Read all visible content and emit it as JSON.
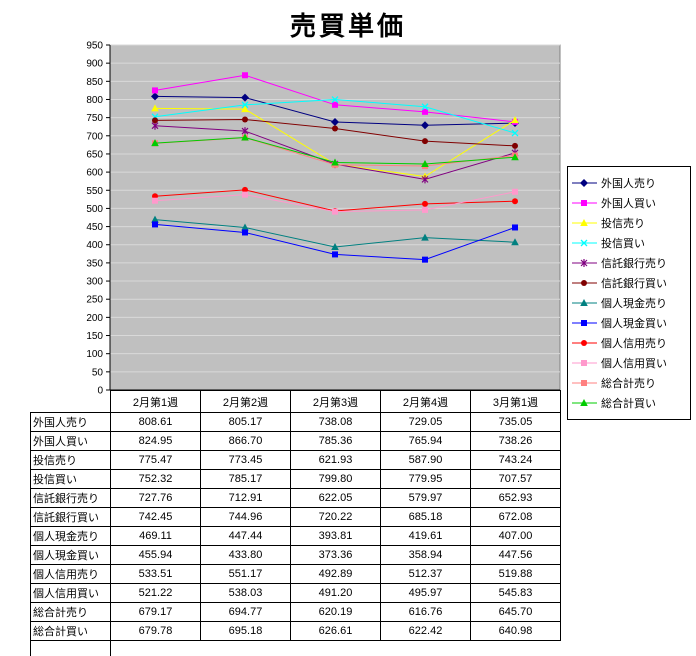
{
  "title": "売買単価",
  "chart_data": {
    "type": "line",
    "title": "売買単価",
    "categories": [
      "2月第1週",
      "2月第2週",
      "2月第3週",
      "2月第4週",
      "3月第1週"
    ],
    "ylim": [
      0,
      950
    ],
    "ytick_step": 50,
    "grid": true,
    "legend_position": "right",
    "plot_bg": "#C0C0C0",
    "grid_color": "#D9D9D9",
    "series": [
      {
        "name": "外国人売り",
        "color": "#000080",
        "marker": "diamond",
        "values": [
          808.61,
          805.17,
          738.08,
          729.05,
          735.05
        ]
      },
      {
        "name": "外国人買い",
        "color": "#FF00FF",
        "marker": "square",
        "values": [
          824.95,
          866.7,
          785.36,
          765.94,
          738.26
        ]
      },
      {
        "name": "投信売り",
        "color": "#FFFF00",
        "marker": "triangle",
        "values": [
          775.47,
          773.45,
          621.93,
          587.9,
          743.24
        ]
      },
      {
        "name": "投信買い",
        "color": "#00FFFF",
        "marker": "x",
        "values": [
          752.32,
          785.17,
          799.8,
          779.95,
          707.57
        ]
      },
      {
        "name": "信託銀行売り",
        "color": "#800080",
        "marker": "star",
        "values": [
          727.76,
          712.91,
          622.05,
          579.97,
          652.93
        ]
      },
      {
        "name": "信託銀行買い",
        "color": "#800000",
        "marker": "circle",
        "values": [
          742.45,
          744.96,
          720.22,
          685.18,
          672.08
        ]
      },
      {
        "name": "個人現金売り",
        "color": "#008080",
        "marker": "triangle",
        "values": [
          469.11,
          447.44,
          393.81,
          419.61,
          407.0
        ]
      },
      {
        "name": "個人現金買い",
        "color": "#0000FF",
        "marker": "square",
        "values": [
          455.94,
          433.8,
          373.36,
          358.94,
          447.56
        ]
      },
      {
        "name": "個人信用売り",
        "color": "#FF0000",
        "marker": "circle",
        "values": [
          533.51,
          551.17,
          492.89,
          512.37,
          519.88
        ]
      },
      {
        "name": "個人信用買い",
        "color": "#FF99CC",
        "marker": "square",
        "values": [
          521.22,
          538.03,
          491.2,
          495.97,
          545.83
        ]
      },
      {
        "name": "総合計売り",
        "color": "#FF8080",
        "marker": "square",
        "values": [
          679.17,
          694.77,
          620.19,
          616.76,
          645.7
        ]
      },
      {
        "name": "総合計買い",
        "color": "#00CC00",
        "marker": "triangle",
        "values": [
          679.78,
          695.18,
          626.61,
          622.42,
          640.98
        ]
      }
    ]
  }
}
